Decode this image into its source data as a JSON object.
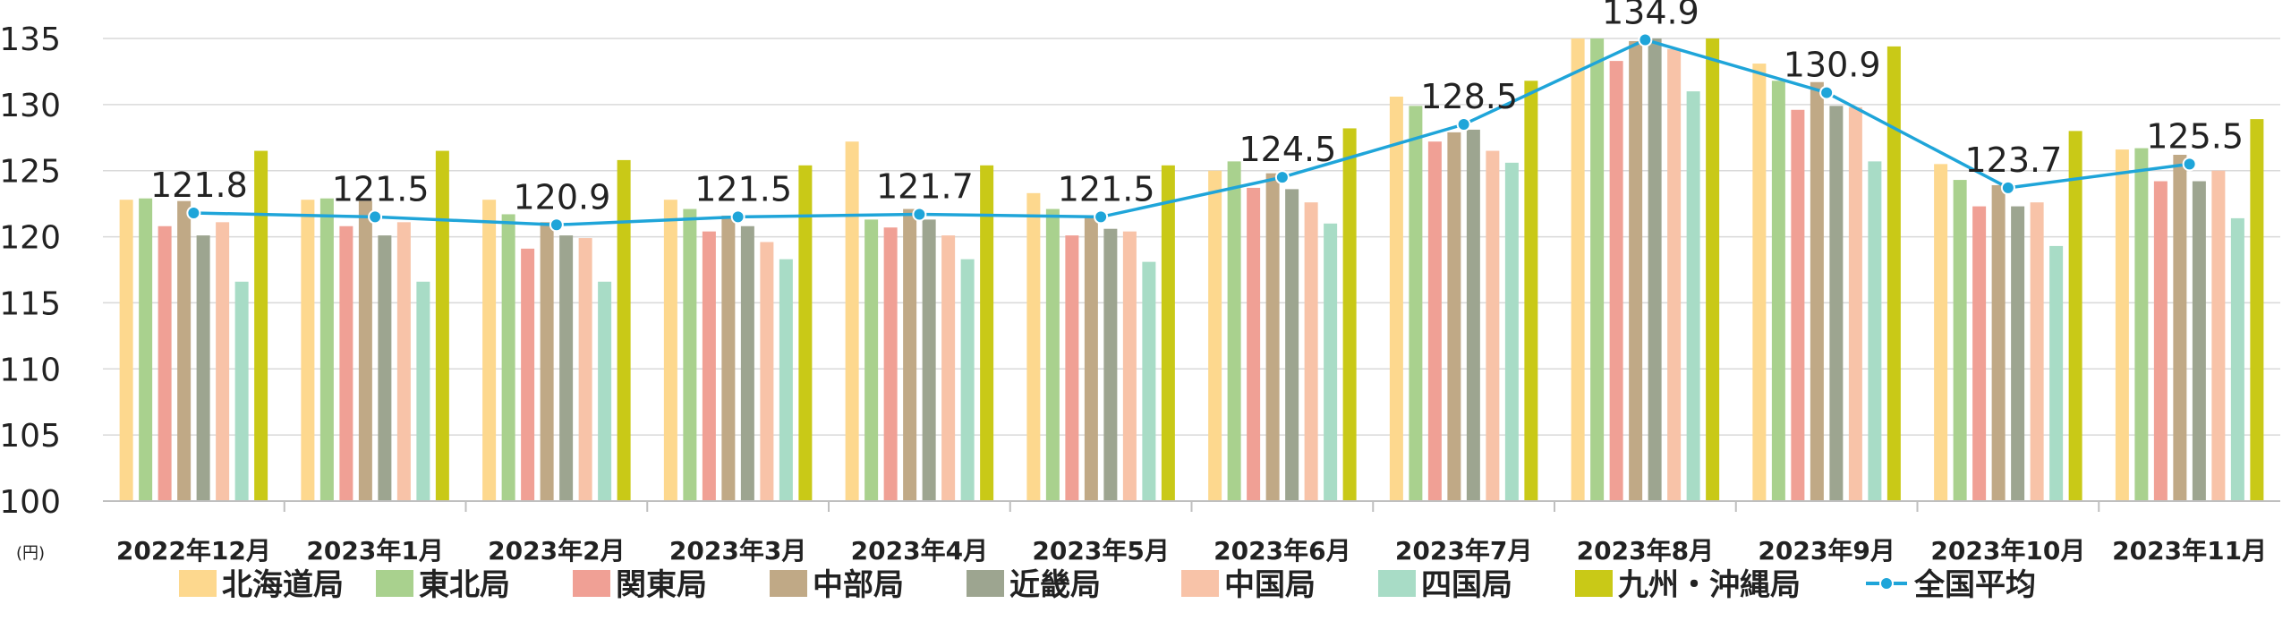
{
  "chart_data": {
    "type": "bar",
    "y_unit": "(円)",
    "ylim": [
      100,
      135
    ],
    "y_ticks": [
      100,
      105,
      110,
      115,
      120,
      125,
      130,
      135
    ],
    "grid": true,
    "legend_position": "bottom",
    "categories": [
      "2022年12月",
      "2023年1月",
      "2023年2月",
      "2023年3月",
      "2023年4月",
      "2023年5月",
      "2023年6月",
      "2023年7月",
      "2023年8月",
      "2023年9月",
      "2023年10月",
      "2023年11月"
    ],
    "series": [
      {
        "name": "北海道局",
        "color": "#FDD88E",
        "values": [
          122.8,
          122.8,
          122.8,
          122.8,
          127.2,
          123.3,
          125.0,
          130.6,
          135.0,
          133.1,
          125.5,
          126.6
        ]
      },
      {
        "name": "東北局",
        "color": "#A9D18E",
        "values": [
          122.9,
          122.9,
          121.7,
          122.1,
          121.3,
          122.1,
          125.7,
          129.9,
          135.0,
          131.8,
          124.3,
          126.7
        ]
      },
      {
        "name": "関東局",
        "color": "#F0A095",
        "values": [
          120.8,
          120.8,
          119.1,
          120.4,
          120.7,
          120.1,
          123.7,
          127.2,
          133.3,
          129.6,
          122.3,
          124.2
        ]
      },
      {
        "name": "中部局",
        "color": "#C0A986",
        "values": [
          122.7,
          122.7,
          121.1,
          121.6,
          122.1,
          121.6,
          124.8,
          127.9,
          134.8,
          131.7,
          123.9,
          126.2
        ]
      },
      {
        "name": "近畿局",
        "color": "#9DA590",
        "values": [
          120.1,
          120.1,
          120.1,
          120.8,
          121.3,
          120.6,
          123.6,
          128.1,
          135.0,
          129.9,
          122.3,
          124.2
        ]
      },
      {
        "name": "中国局",
        "color": "#F8C3A8",
        "values": [
          121.1,
          121.1,
          119.9,
          119.6,
          120.1,
          120.4,
          122.6,
          126.5,
          134.2,
          129.8,
          122.6,
          125.0
        ]
      },
      {
        "name": "四国局",
        "color": "#A8DCC6",
        "values": [
          116.6,
          116.6,
          116.6,
          118.3,
          118.3,
          118.1,
          121.0,
          125.6,
          131.0,
          125.7,
          119.3,
          121.4
        ]
      },
      {
        "name": "九州・沖縄局",
        "color": "#C9C917",
        "values": [
          126.5,
          126.5,
          125.8,
          125.4,
          125.4,
          125.4,
          128.2,
          131.8,
          135.0,
          134.4,
          128.0,
          128.9
        ]
      }
    ],
    "line_series": {
      "name": "全国平均",
      "color": "#1FA5D9",
      "values": [
        121.8,
        121.5,
        120.9,
        121.5,
        121.7,
        121.5,
        124.5,
        128.5,
        134.9,
        130.9,
        123.7,
        125.5
      ]
    }
  }
}
